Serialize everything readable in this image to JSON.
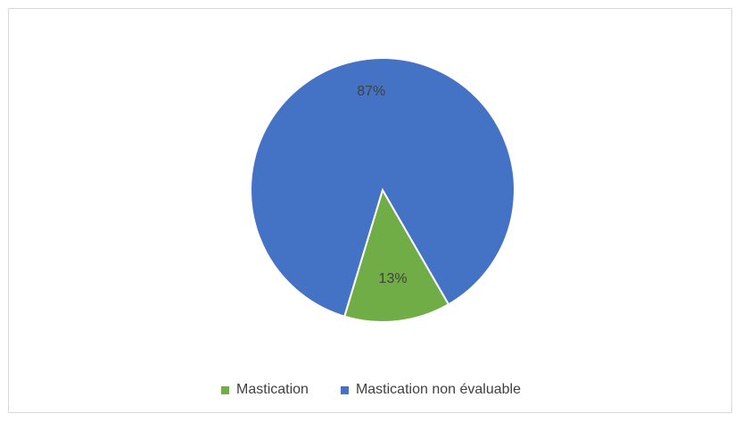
{
  "chart_data": {
    "type": "pie",
    "title": "",
    "slices": [
      {
        "label": "Mastication",
        "value": 13,
        "display": "13%",
        "color": "#70ad47"
      },
      {
        "label": "Mastication non évaluable",
        "value": 87,
        "display": "87%",
        "color": "#4472c4"
      }
    ],
    "legend_position": "bottom"
  }
}
